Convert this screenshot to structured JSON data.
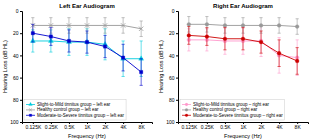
{
  "chart_data": [
    {
      "type": "line",
      "title": "Left Ear Audiogram",
      "xlabel": "Frequency (Hz)",
      "ylabel": "Hearing Loss (dB HL)",
      "categories": [
        "0.125K",
        "0.25K",
        "0.5K",
        "1K",
        "2K",
        "4K",
        "8K"
      ],
      "series": [
        {
          "name": "Slight-to-Mild tinnitus group – left ear",
          "color": "#00ccdd",
          "marker": "triangle",
          "values": [
            27,
            27,
            28,
            28,
            30,
            43,
            43
          ],
          "yerr_lo": [
            10,
            10,
            12,
            12,
            14,
            16,
            16
          ],
          "yerr_hi": [
            10,
            10,
            12,
            12,
            14,
            16,
            16
          ]
        },
        {
          "name": "Healthy control group – left ear",
          "color": "#999999",
          "marker": "x",
          "values": [
            13,
            13,
            13,
            13,
            13,
            13,
            16
          ],
          "yerr_lo": [
            7,
            7,
            7,
            7,
            7,
            7,
            7
          ],
          "yerr_hi": [
            7,
            7,
            7,
            7,
            7,
            7,
            7
          ]
        },
        {
          "name": "Moderate-to-Severe tinnitus group – left ear",
          "color": "#0000cc",
          "marker": "square",
          "values": [
            20,
            23,
            27,
            28,
            32,
            42,
            55
          ],
          "yerr_lo": [
            8,
            8,
            10,
            10,
            10,
            12,
            12
          ],
          "yerr_hi": [
            8,
            8,
            10,
            10,
            10,
            12,
            12
          ]
        }
      ],
      "ylim": [
        100,
        0
      ],
      "yticks": [
        0,
        20,
        40,
        60,
        80,
        100
      ],
      "grid": false,
      "legend": "lower left"
    },
    {
      "type": "line",
      "title": "Right Ear Audiogram",
      "xlabel": "Frequency (Hz)",
      "ylabel": "Hearing Loss (dB HL)",
      "categories": [
        "0.125K",
        "0.25K",
        "0.5K",
        "1K",
        "2K",
        "4K",
        "8K"
      ],
      "series": [
        {
          "name": "Slight-to-Mild tinnitus group – right ear",
          "color": "#ff99cc",
          "marker": "circle",
          "values": [
            26,
            26,
            27,
            27,
            27,
            40,
            42
          ],
          "yerr_lo": [
            10,
            10,
            12,
            12,
            14,
            16,
            16
          ],
          "yerr_hi": [
            10,
            10,
            12,
            12,
            14,
            16,
            16
          ]
        },
        {
          "name": "Healthy control group – right ear",
          "color": "#999999",
          "marker": "circle",
          "values": [
            12,
            12,
            13,
            13,
            13,
            13,
            14
          ],
          "yerr_lo": [
            7,
            7,
            7,
            7,
            7,
            7,
            7
          ],
          "yerr_hi": [
            7,
            7,
            7,
            7,
            7,
            7,
            7
          ]
        },
        {
          "name": "Moderate-to-Severe tinnitus group – right ear",
          "color": "#cc0000",
          "marker": "circle",
          "values": [
            22,
            23,
            25,
            25,
            28,
            38,
            45
          ],
          "yerr_lo": [
            8,
            8,
            10,
            10,
            10,
            12,
            12
          ],
          "yerr_hi": [
            8,
            8,
            10,
            10,
            10,
            12,
            12
          ]
        }
      ],
      "ylim": [
        100,
        0
      ],
      "yticks": [
        0,
        20,
        40,
        60,
        80,
        100
      ],
      "grid": false,
      "legend": "lower left"
    }
  ]
}
